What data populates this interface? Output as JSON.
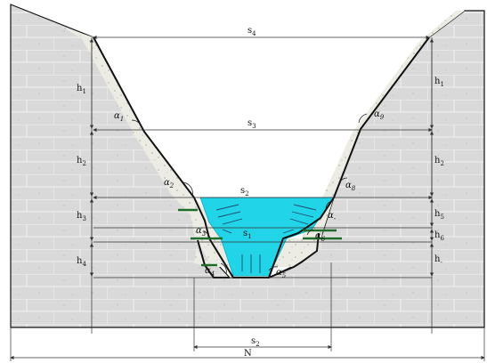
{
  "diagram": {
    "top_width_label": "s",
    "top_width_sub": "4",
    "upper_width_label": "s",
    "upper_width_sub": "3",
    "water_width_label": "s",
    "water_width_sub": "2",
    "channel_width_label": "s",
    "channel_width_sub": "1",
    "bottom_dim_label": "s",
    "bottom_dim_sub": "2",
    "overall_label": "N",
    "height_labels_left": [
      {
        "main": "h",
        "sub": "1"
      },
      {
        "main": "h",
        "sub": "2"
      },
      {
        "main": "h",
        "sub": "3"
      },
      {
        "main": "h",
        "sub": "4"
      }
    ],
    "height_labels_right": [
      {
        "main": "h",
        "sub": "1"
      },
      {
        "main": "h",
        "sub": "2"
      },
      {
        "main": "h",
        "sub": "5"
      },
      {
        "main": "h",
        "sub": "6"
      },
      {
        "main": "h",
        "sub": "-"
      }
    ],
    "angle_labels": [
      {
        "main": "α",
        "sub": "1"
      },
      {
        "main": "α",
        "sub": "2"
      },
      {
        "main": "α",
        "sub": "3"
      },
      {
        "main": "α",
        "sub": "4"
      },
      {
        "main": "α",
        "sub": "5"
      },
      {
        "main": "α",
        "sub": "6"
      },
      {
        "main": "α",
        "sub": "-"
      },
      {
        "main": "α",
        "sub": "8"
      },
      {
        "main": "α",
        "sub": "9"
      }
    ],
    "colors": {
      "soil": "#d9d9d9",
      "soil_line": "#ffffff",
      "lining": "#ecece4",
      "water": "#22d4e8",
      "outline": "#111111",
      "dim_line": "#333333",
      "bench": "#1f6b2a"
    }
  }
}
